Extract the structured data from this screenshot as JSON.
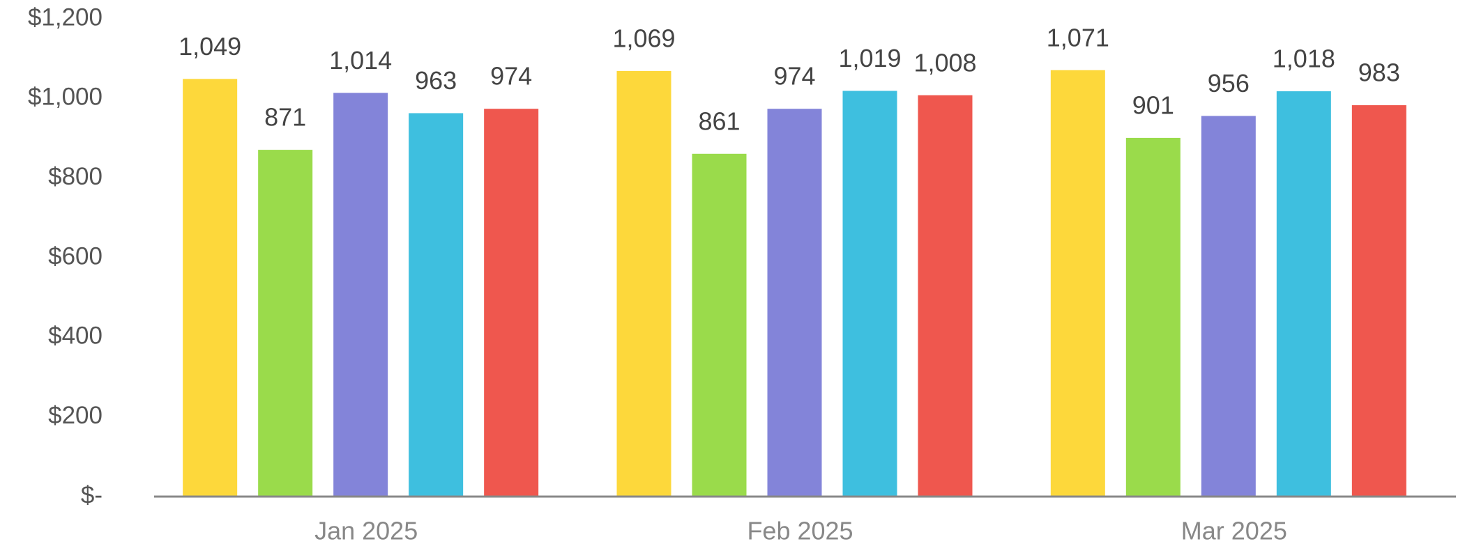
{
  "chart_data": {
    "type": "bar",
    "categories": [
      "Jan 2025",
      "Feb 2025",
      "Mar 2025"
    ],
    "series": [
      {
        "color": "#fdd83b",
        "values": [
          1049,
          1069,
          1071
        ],
        "value_labels": [
          "1,049",
          "1,069",
          "1,071"
        ]
      },
      {
        "color": "#9adb4b",
        "values": [
          871,
          861,
          901
        ],
        "value_labels": [
          "871",
          "861",
          "901"
        ]
      },
      {
        "color": "#8384d9",
        "values": [
          1014,
          974,
          956
        ],
        "value_labels": [
          "1,014",
          "974",
          "956"
        ]
      },
      {
        "color": "#3ebfdf",
        "values": [
          963,
          1019,
          1018
        ],
        "value_labels": [
          "963",
          "1,019",
          "1,018"
        ]
      },
      {
        "color": "#ef574e",
        "values": [
          974,
          1008,
          983
        ],
        "value_labels": [
          "974",
          "1,008",
          "983"
        ]
      }
    ],
    "ylim": [
      0,
      1200
    ],
    "yticks": [
      {
        "value": 0,
        "label": "$-"
      },
      {
        "value": 200,
        "label": "$200"
      },
      {
        "value": 400,
        "label": "$400"
      },
      {
        "value": 600,
        "label": "$600"
      },
      {
        "value": 800,
        "label": "$800"
      },
      {
        "value": 1000,
        "label": "$1,000"
      },
      {
        "value": 1200,
        "label": "$1,200"
      }
    ],
    "grid": false
  }
}
